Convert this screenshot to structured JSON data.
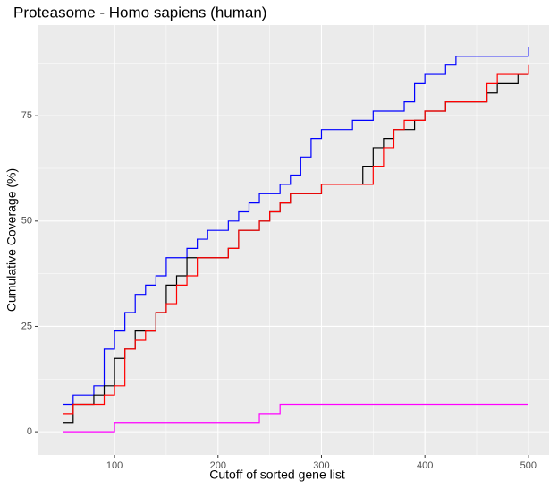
{
  "chart_data": {
    "type": "line",
    "line_style": "step",
    "title": "Proteasome - Homo sapiens (human)",
    "x_label": "Cutoff of sorted gene list",
    "y_label": "Cumulative Coverage (%)",
    "x": [
      50,
      60,
      70,
      80,
      90,
      100,
      110,
      120,
      130,
      140,
      150,
      160,
      170,
      180,
      190,
      200,
      210,
      220,
      230,
      240,
      250,
      260,
      270,
      280,
      290,
      300,
      310,
      320,
      330,
      340,
      350,
      360,
      370,
      380,
      390,
      400,
      410,
      420,
      430,
      440,
      450,
      460,
      470,
      480,
      490,
      500
    ],
    "series": [
      {
        "color": "#0000ff",
        "values": [
          6.5,
          8.7,
          8.7,
          10.9,
          19.6,
          23.9,
          28.3,
          32.6,
          34.8,
          37,
          41.3,
          41.3,
          43.5,
          45.7,
          47.8,
          47.8,
          50,
          52.2,
          54.3,
          56.5,
          56.5,
          58.7,
          60.9,
          65.2,
          69.6,
          71.7,
          71.7,
          71.7,
          73.9,
          73.9,
          76.1,
          76.1,
          76.1,
          78.3,
          82.6,
          84.8,
          84.8,
          87,
          89.1,
          89.1,
          89.1,
          89.1,
          89.1,
          89.1,
          89.1,
          91.3
        ]
      },
      {
        "color": "#000000",
        "values": [
          2.2,
          6.5,
          6.5,
          8.7,
          10.9,
          17.4,
          19.6,
          23.9,
          23.9,
          28.3,
          34.8,
          37,
          41.3,
          41.3,
          41.3,
          41.3,
          43.5,
          47.8,
          47.8,
          50,
          52.2,
          54.3,
          56.5,
          56.5,
          56.5,
          58.7,
          58.7,
          58.7,
          58.7,
          63,
          67.4,
          69.6,
          71.7,
          71.7,
          73.9,
          76.1,
          76.1,
          78.3,
          78.3,
          78.3,
          78.3,
          80.4,
          82.6,
          82.6,
          84.8,
          84.8
        ]
      },
      {
        "color": "#ff0000",
        "values": [
          4.3,
          6.5,
          6.5,
          6.5,
          8.7,
          10.9,
          19.6,
          21.7,
          23.9,
          28.3,
          30.4,
          34.8,
          37,
          41.3,
          41.3,
          41.3,
          43.5,
          47.8,
          47.8,
          50,
          52.2,
          54.3,
          56.5,
          56.5,
          56.5,
          58.7,
          58.7,
          58.7,
          58.7,
          58.7,
          63,
          67.4,
          71.7,
          73.9,
          73.9,
          76.1,
          76.1,
          78.3,
          78.3,
          78.3,
          78.3,
          82.6,
          84.8,
          84.8,
          84.8,
          87
        ]
      },
      {
        "color": "#ff00ff",
        "values": [
          0,
          0,
          0,
          0,
          0,
          2.2,
          2.2,
          2.2,
          2.2,
          2.2,
          2.2,
          2.2,
          2.2,
          2.2,
          2.2,
          2.2,
          2.2,
          2.2,
          2.2,
          4.3,
          4.3,
          6.5,
          6.5,
          6.5,
          6.5,
          6.5,
          6.5,
          6.5,
          6.5,
          6.5,
          6.5,
          6.5,
          6.5,
          6.5,
          6.5,
          6.5,
          6.5,
          6.5,
          6.5,
          6.5,
          6.5,
          6.5,
          6.5,
          6.5,
          6.5,
          6.5
        ]
      }
    ],
    "xlim": [
      25.6,
      520
    ],
    "xticks": [
      100,
      200,
      300,
      400,
      500
    ],
    "ylim": [
      -5.5,
      96.5
    ],
    "yticks": [
      0,
      25,
      50,
      75
    ],
    "grid": true,
    "minor_grid": true,
    "panel_color": "#ebebeb"
  }
}
